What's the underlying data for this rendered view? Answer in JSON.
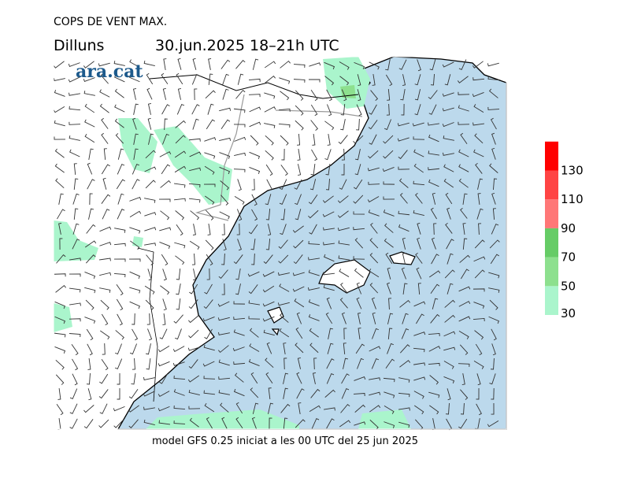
{
  "header": {
    "title": "COPS DE VENT MAX.",
    "day": "Dilluns",
    "date": "30.jun.2025 18–21h UTC",
    "logo": "ara.cat"
  },
  "footer": "model GFS 0.25 iniciat a les 00 UTC del 25 jun 2025",
  "legend": {
    "ticks": [
      30,
      50,
      70,
      90,
      110,
      130
    ],
    "colors": [
      "#aaf5cc",
      "#8de08e",
      "#66cc66",
      "#ff7777",
      "#ff4444",
      "#ff0000"
    ]
  }
}
